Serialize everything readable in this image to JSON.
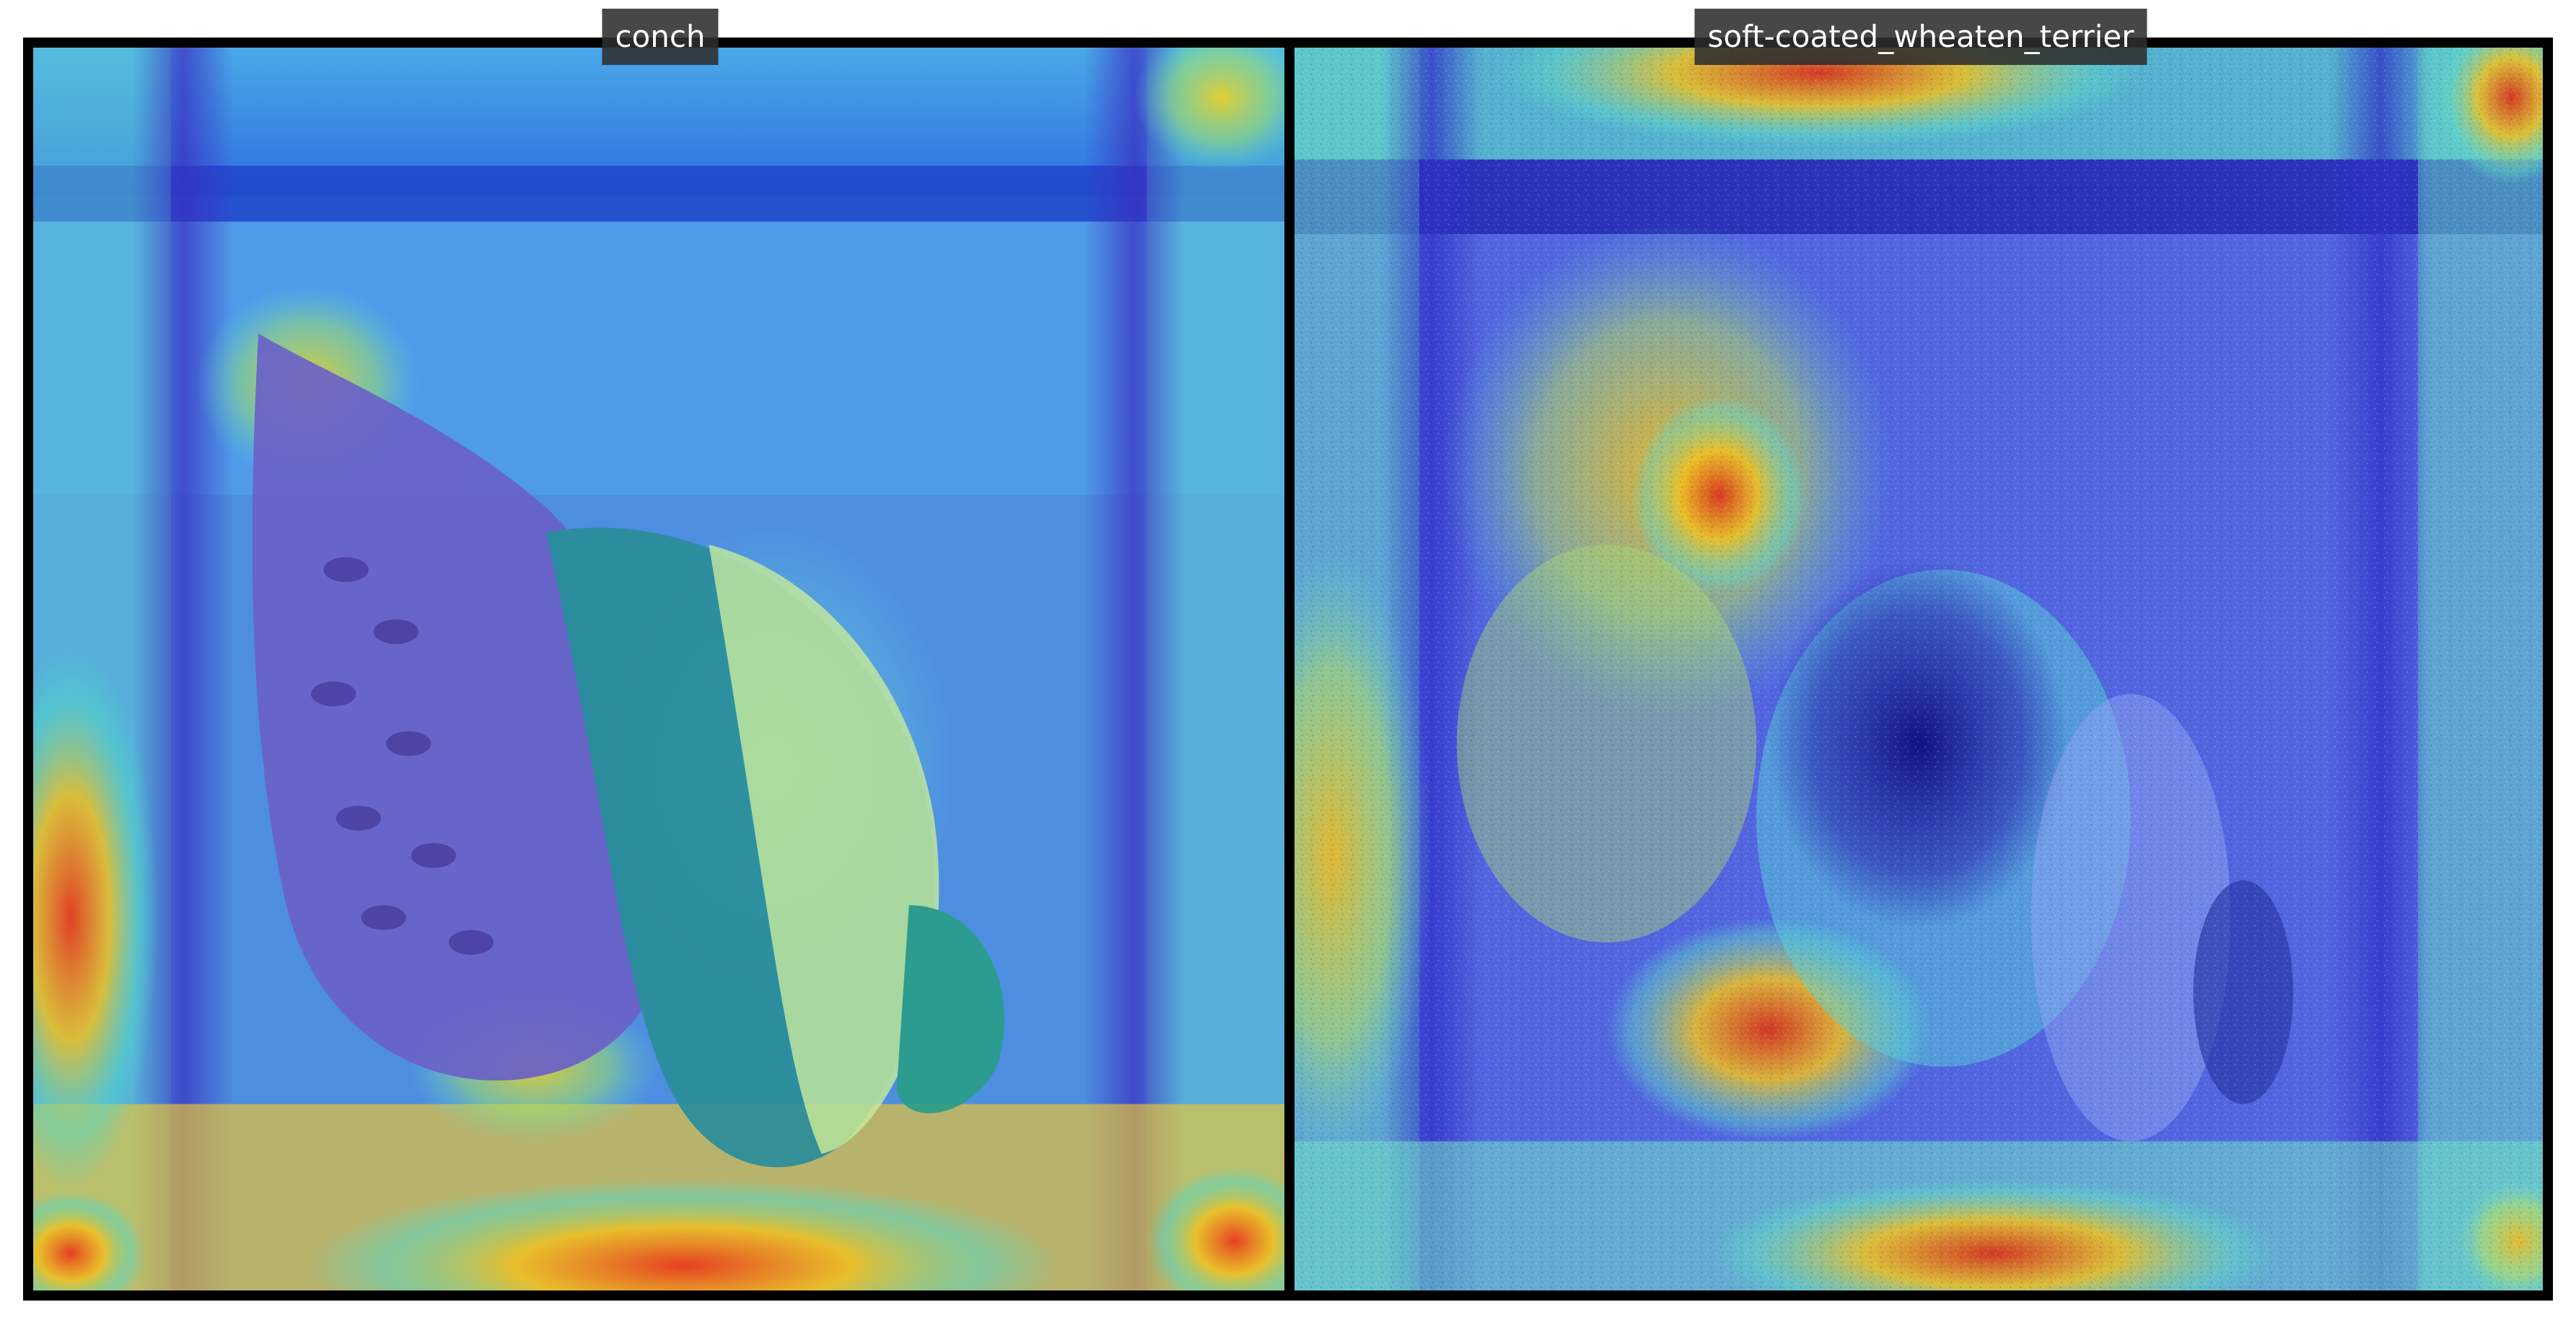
{
  "panels": [
    {
      "label": "conch",
      "content": "heatmap-overlay"
    },
    {
      "label": "soft-coated_wheaten_terrier",
      "content": "heatmap-overlay"
    }
  ],
  "colors": {
    "frame": "#000000",
    "caption_bg": "#2d2d2d",
    "caption_text": "#ffffff",
    "heat_low": "#1a1aa0",
    "heat_mid": "#40d0d0",
    "heat_high": "#e03020"
  }
}
